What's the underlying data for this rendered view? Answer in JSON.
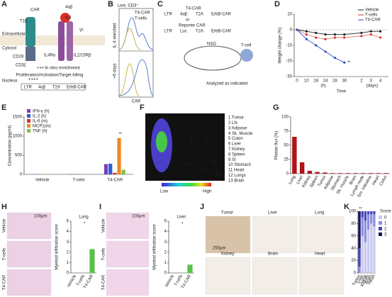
{
  "panel_labels": [
    "A",
    "B",
    "C",
    "D",
    "E",
    "F",
    "G",
    "H",
    "I",
    "J",
    "K"
  ],
  "A": {
    "car": "CAR",
    "receptor": "4αβ",
    "t1e": "T1E",
    "il4": "IL4",
    "gc": "γc",
    "extracellular": "Extracellular",
    "cytosol": "Cytosol",
    "cd28": "CD28",
    "cd3z": "CD3ζ",
    "il4ra": "IL4Rα",
    "il2r": "IL2/15Rβ",
    "enrich": "In vitro enrichment",
    "plus": "+++",
    "function": "Proliferation/Activation/Target killing",
    "nucleus": "Nucleus",
    "nuc_plus": "++++",
    "construct": [
      "LTR",
      "4αβ",
      "T2A",
      "ErbB-CAR"
    ]
  },
  "B": {
    "gate": "Live, CD3⁺",
    "series": [
      "T4-CAR",
      "T-cells"
    ],
    "colors": [
      "#5b7fd6",
      "#c8b84a"
    ],
    "note": "IL-4 enriched",
    "days": "+5 days",
    "xlabel": "CAR"
  },
  "C": {
    "car_name": "T4-CAR",
    "construct": [
      "LTR",
      "4αβ",
      "T2A",
      "ErbB-CAR"
    ],
    "or": "or",
    "reporter": "Reporter CAR",
    "reporter_construct": [
      "LTR",
      "Luc",
      "T2A",
      "ErbB-CAR"
    ],
    "mouse": "NSG",
    "tcell": "T-cell",
    "analyzed": "Analyzed as indicated"
  },
  "D": {
    "type": "line",
    "ylabel": "Weight change (%)",
    "xlabel": "Time",
    "x_units": [
      "(h)",
      "(days)"
    ],
    "categories": [
      "0",
      "10",
      "18",
      "24",
      "28",
      "30",
      "2",
      "3",
      "4"
    ],
    "ylim": [
      -30,
      10
    ],
    "yticks": [
      -30,
      -20,
      -10,
      0,
      10
    ],
    "annotation": "**",
    "series": [
      {
        "name": "Vehicle",
        "color": "#222222",
        "values": [
          0,
          -1,
          -2,
          -3,
          -3,
          -3,
          -2,
          -1,
          -1
        ]
      },
      {
        "name": "T-cells",
        "color": "#d9302a",
        "values": [
          0,
          -3,
          -5,
          -6,
          -5,
          -5,
          -4,
          -3,
          -5
        ]
      },
      {
        "name": "T4-CAR",
        "color": "#2f4fc9",
        "values": [
          0,
          -6,
          -10,
          -14,
          -18,
          -21,
          null,
          null,
          null
        ]
      }
    ]
  },
  "E": {
    "type": "grouped-bar",
    "ylabel": "Concentration (pg/ml)",
    "categories": [
      "Vehicle",
      "T-cells",
      "T4-CAR"
    ],
    "ylim": [
      0,
      1500
    ],
    "yticks": [
      0,
      500,
      1000,
      1500
    ],
    "annotation": "**",
    "series": [
      {
        "name": "IFN-γ (h)",
        "color": "#7b3fb8",
        "values": [
          5,
          8,
          270
        ]
      },
      {
        "name": "IL-2 (h)",
        "color": "#2f5fd0",
        "values": [
          5,
          6,
          280
        ]
      },
      {
        "name": "IL-6 (m)",
        "color": "#d9302a",
        "values": [
          4,
          5,
          40
        ]
      },
      {
        "name": "MCP1(m)",
        "color": "#ee8a1e",
        "values": [
          6,
          7,
          950
        ]
      },
      {
        "name": "TNF (h)",
        "color": "#7cc242",
        "values": [
          4,
          5,
          120
        ]
      }
    ]
  },
  "F": {
    "markers": [
      "1",
      "2",
      "3",
      "4",
      "5",
      "6",
      "7",
      "8",
      "9",
      "10",
      "11",
      "12",
      "13"
    ],
    "organs": [
      "1 Tumor",
      "2 LN",
      "3 Adipose",
      "4 Sk. Muscle",
      "5 Colon",
      "6 Liver",
      "7 Kidney",
      "8 Spleen",
      "9 SI",
      "10 Stomach",
      "11 Heart",
      "12 Lungs",
      "13 Brain"
    ],
    "low": "Low",
    "high": "High"
  },
  "G": {
    "type": "bar",
    "ylabel": "Photon flux (%)",
    "color": "#b0141b",
    "categories": [
      "Lung",
      "Liver",
      "Kidney",
      "Spleen",
      "Tumor",
      "Adipose",
      "Stomach",
      "Sk. muscle",
      "Brain",
      "Lymph node",
      "Sm. intestine",
      "Heart",
      "Colon"
    ],
    "values": [
      65,
      20,
      5,
      3,
      2,
      1,
      1,
      1,
      1,
      1,
      1,
      1,
      1
    ],
    "ylim": [
      0,
      100
    ],
    "yticks": [
      0,
      25,
      50,
      75,
      100
    ]
  },
  "H": {
    "images": [
      "Vehicle",
      "T-cells",
      "T4-CAR"
    ],
    "scale": "100μm",
    "chart": {
      "type": "bar",
      "title": "Lung",
      "ylabel": "Myeloid infiltration score",
      "categories": [
        "Vehicle",
        "T-cells",
        "T4-CAR"
      ],
      "values": [
        0,
        0,
        2.3
      ],
      "colors": [
        "#444444",
        "#444444",
        "#5cc04a"
      ],
      "ylim": [
        0,
        5
      ],
      "yticks": [
        0,
        1,
        2,
        3,
        4,
        5
      ],
      "annotation": "*"
    }
  },
  "I": {
    "images": [
      "Vehicle",
      "T-cells",
      "T4-CAR"
    ],
    "scale": "100μm",
    "chart": {
      "type": "bar",
      "title": "Liver",
      "ylabel": "Myeloid infiltration score",
      "categories": [
        "Vehicle",
        "T-cells",
        "T4-CAR"
      ],
      "values": [
        0,
        0,
        0.8
      ],
      "colors": [
        "#444444",
        "#444444",
        "#5cc04a"
      ],
      "ylim": [
        0,
        5
      ],
      "yticks": [
        0,
        1,
        2,
        3,
        4,
        5
      ],
      "annotation": "*"
    }
  },
  "J": {
    "images": [
      "Tumor",
      "Liver",
      "Lung",
      "Kidney",
      "Brain",
      "Heart"
    ],
    "scale": "250μm"
  },
  "K": {
    "type": "stacked-bar",
    "legend_title": "Score",
    "categories": [
      "Tumor",
      "Liver",
      "Lung",
      "Kidney",
      "Brain",
      "Heart"
    ],
    "ylim": [
      0,
      100
    ],
    "yticks": [
      0,
      20,
      40,
      60,
      80,
      100
    ],
    "annotation": "**",
    "series": [
      {
        "name": "0",
        "color": "#c9c9ef",
        "values": [
          0,
          60,
          50,
          70,
          80,
          75
        ]
      },
      {
        "name": "1",
        "color": "#8e8ee0",
        "values": [
          10,
          30,
          35,
          25,
          15,
          20
        ]
      },
      {
        "name": "2",
        "color": "#4848b8",
        "values": [
          30,
          10,
          15,
          5,
          5,
          5
        ]
      },
      {
        "name": "3",
        "color": "#16165e",
        "values": [
          60,
          0,
          0,
          0,
          0,
          0
        ]
      }
    ]
  }
}
